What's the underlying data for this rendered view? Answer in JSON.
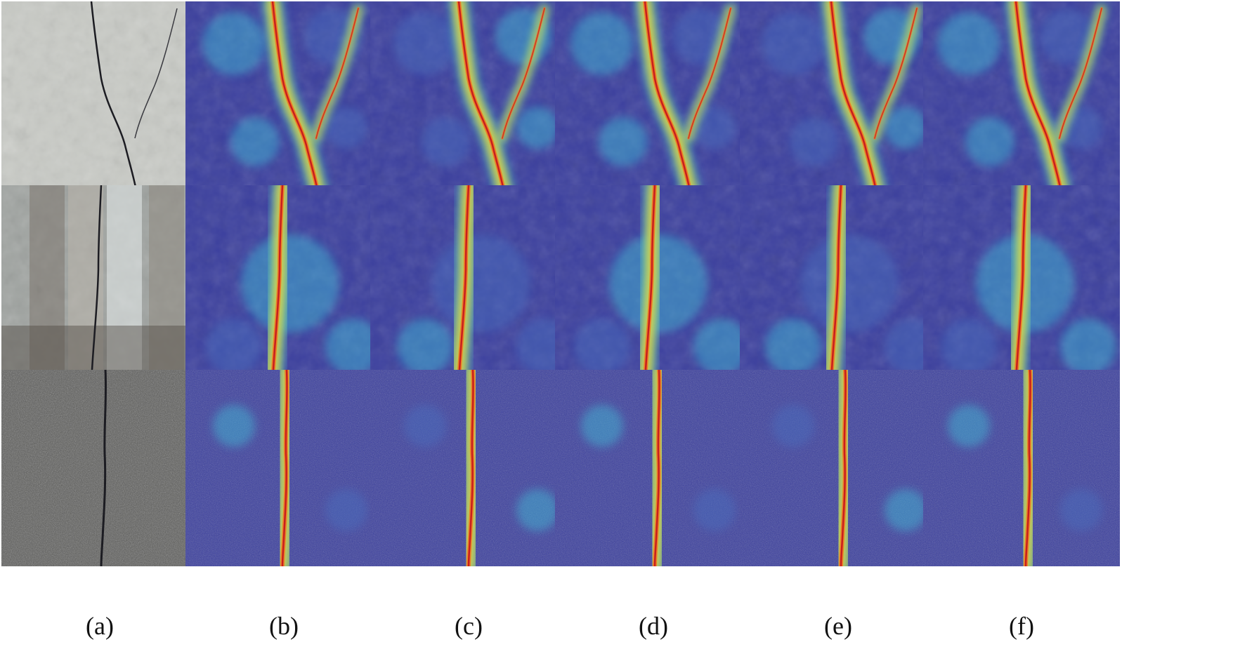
{
  "figure": {
    "columns": [
      {
        "label": "(a)",
        "kind": "photo"
      },
      {
        "label": "(b)",
        "kind": "heatmap"
      },
      {
        "label": "(c)",
        "kind": "heatmap"
      },
      {
        "label": "(d)",
        "kind": "heatmap"
      },
      {
        "label": "(e)",
        "kind": "heatmap"
      },
      {
        "label": "(f)",
        "kind": "heatmap"
      }
    ],
    "rows": [
      {
        "subject": "concrete-wall-diagonal-crack",
        "surface_color": "#c9cbc6"
      },
      {
        "subject": "weathered-wall-vertical-crack",
        "surface_color": "#9fa3a0"
      },
      {
        "subject": "granular-pavement-vertical-crack",
        "surface_color": "#5a5a58"
      }
    ],
    "colormap": [
      "#3b3f9e",
      "#4a6fc0",
      "#3fc0d8",
      "#c8e04a",
      "#f2d23a",
      "#f07a22",
      "#c81e1e"
    ]
  }
}
